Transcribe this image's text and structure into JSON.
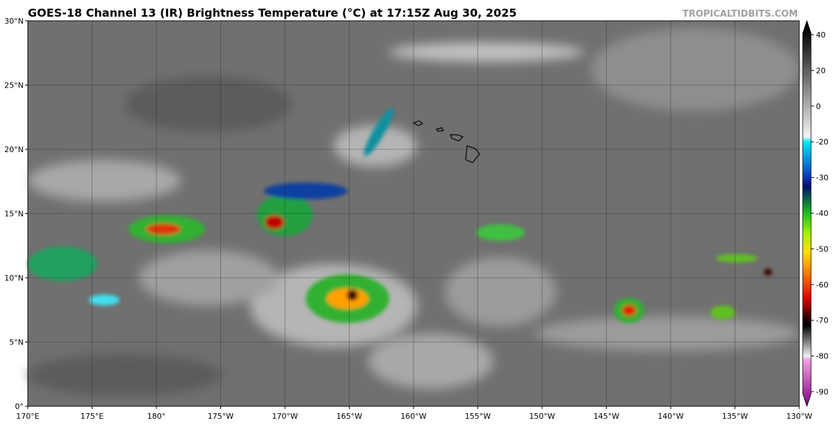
{
  "title": "GOES-18 Channel 13 (IR) Brightness Temperature (°C) at 17:15Z Aug 30, 2025",
  "watermark": "TROPICALTIDBITS.COM",
  "map": {
    "lat_labels": [
      "0°",
      "5°N",
      "10°N",
      "15°N",
      "20°N",
      "25°N",
      "30°N"
    ],
    "lon_labels": [
      "170°E",
      "175°E",
      "180°",
      "175°W",
      "170°W",
      "165°W",
      "160°W",
      "155°W",
      "150°W",
      "145°W",
      "140°W",
      "135°W",
      "130°W"
    ]
  },
  "colorbar": {
    "labels": [
      "40",
      "20",
      "0",
      "-20",
      "-30",
      "-40",
      "-50",
      "-60",
      "-70",
      "-80",
      "-90"
    ]
  }
}
